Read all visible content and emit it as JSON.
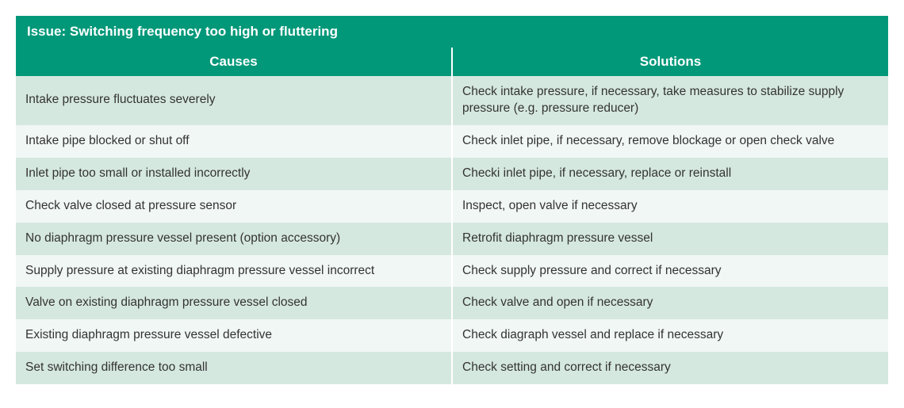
{
  "table": {
    "title": "Issue: Switching frequency too high or fluttering",
    "columns": [
      "Causes",
      "Solutions"
    ],
    "column_widths": [
      "50%",
      "50%"
    ],
    "title_bg": "#009879",
    "header_bg": "#009879",
    "header_text_color": "#ffffff",
    "row_odd_bg": "#d5e8e0",
    "row_even_bg": "#f1f7f5",
    "cell_text_color": "#333333",
    "font_family": "Verdana, Geneva, sans-serif",
    "title_fontsize": 17,
    "header_fontsize": 17,
    "cell_fontsize": 15.5,
    "rows": [
      {
        "cause": "Intake pressure fluctuates severely",
        "solution": "Check intake pressure, if necessary, take measures to stabilize supply pressure (e.g. pressure reducer)"
      },
      {
        "cause": "Intake pipe blocked or shut off",
        "solution": "Check inlet pipe, if necessary, remove blockage or open check valve"
      },
      {
        "cause": "Inlet pipe too small or installed incorrectly",
        "solution": "Checki inlet pipe, if necessary, replace or reinstall"
      },
      {
        "cause": "Check valve closed at pressure sensor",
        "solution": "Inspect, open valve if necessary"
      },
      {
        "cause": "No diaphragm pressure vessel present (option accessory)",
        "solution": "Retrofit diaphragm pressure vessel"
      },
      {
        "cause": "Supply pressure at existing diaphragm pressure vessel incorrect",
        "solution": "Check supply pressure and correct if necessary"
      },
      {
        "cause": "Valve on existing diaphragm pressure vessel closed",
        "solution": "Check valve and open if necessary"
      },
      {
        "cause": "Existing diaphragm pressure vessel defective",
        "solution": "Check diagraph vessel and replace if necessary"
      },
      {
        "cause": "Set switching difference too small",
        "solution": "Check setting and correct if necessary"
      }
    ]
  }
}
